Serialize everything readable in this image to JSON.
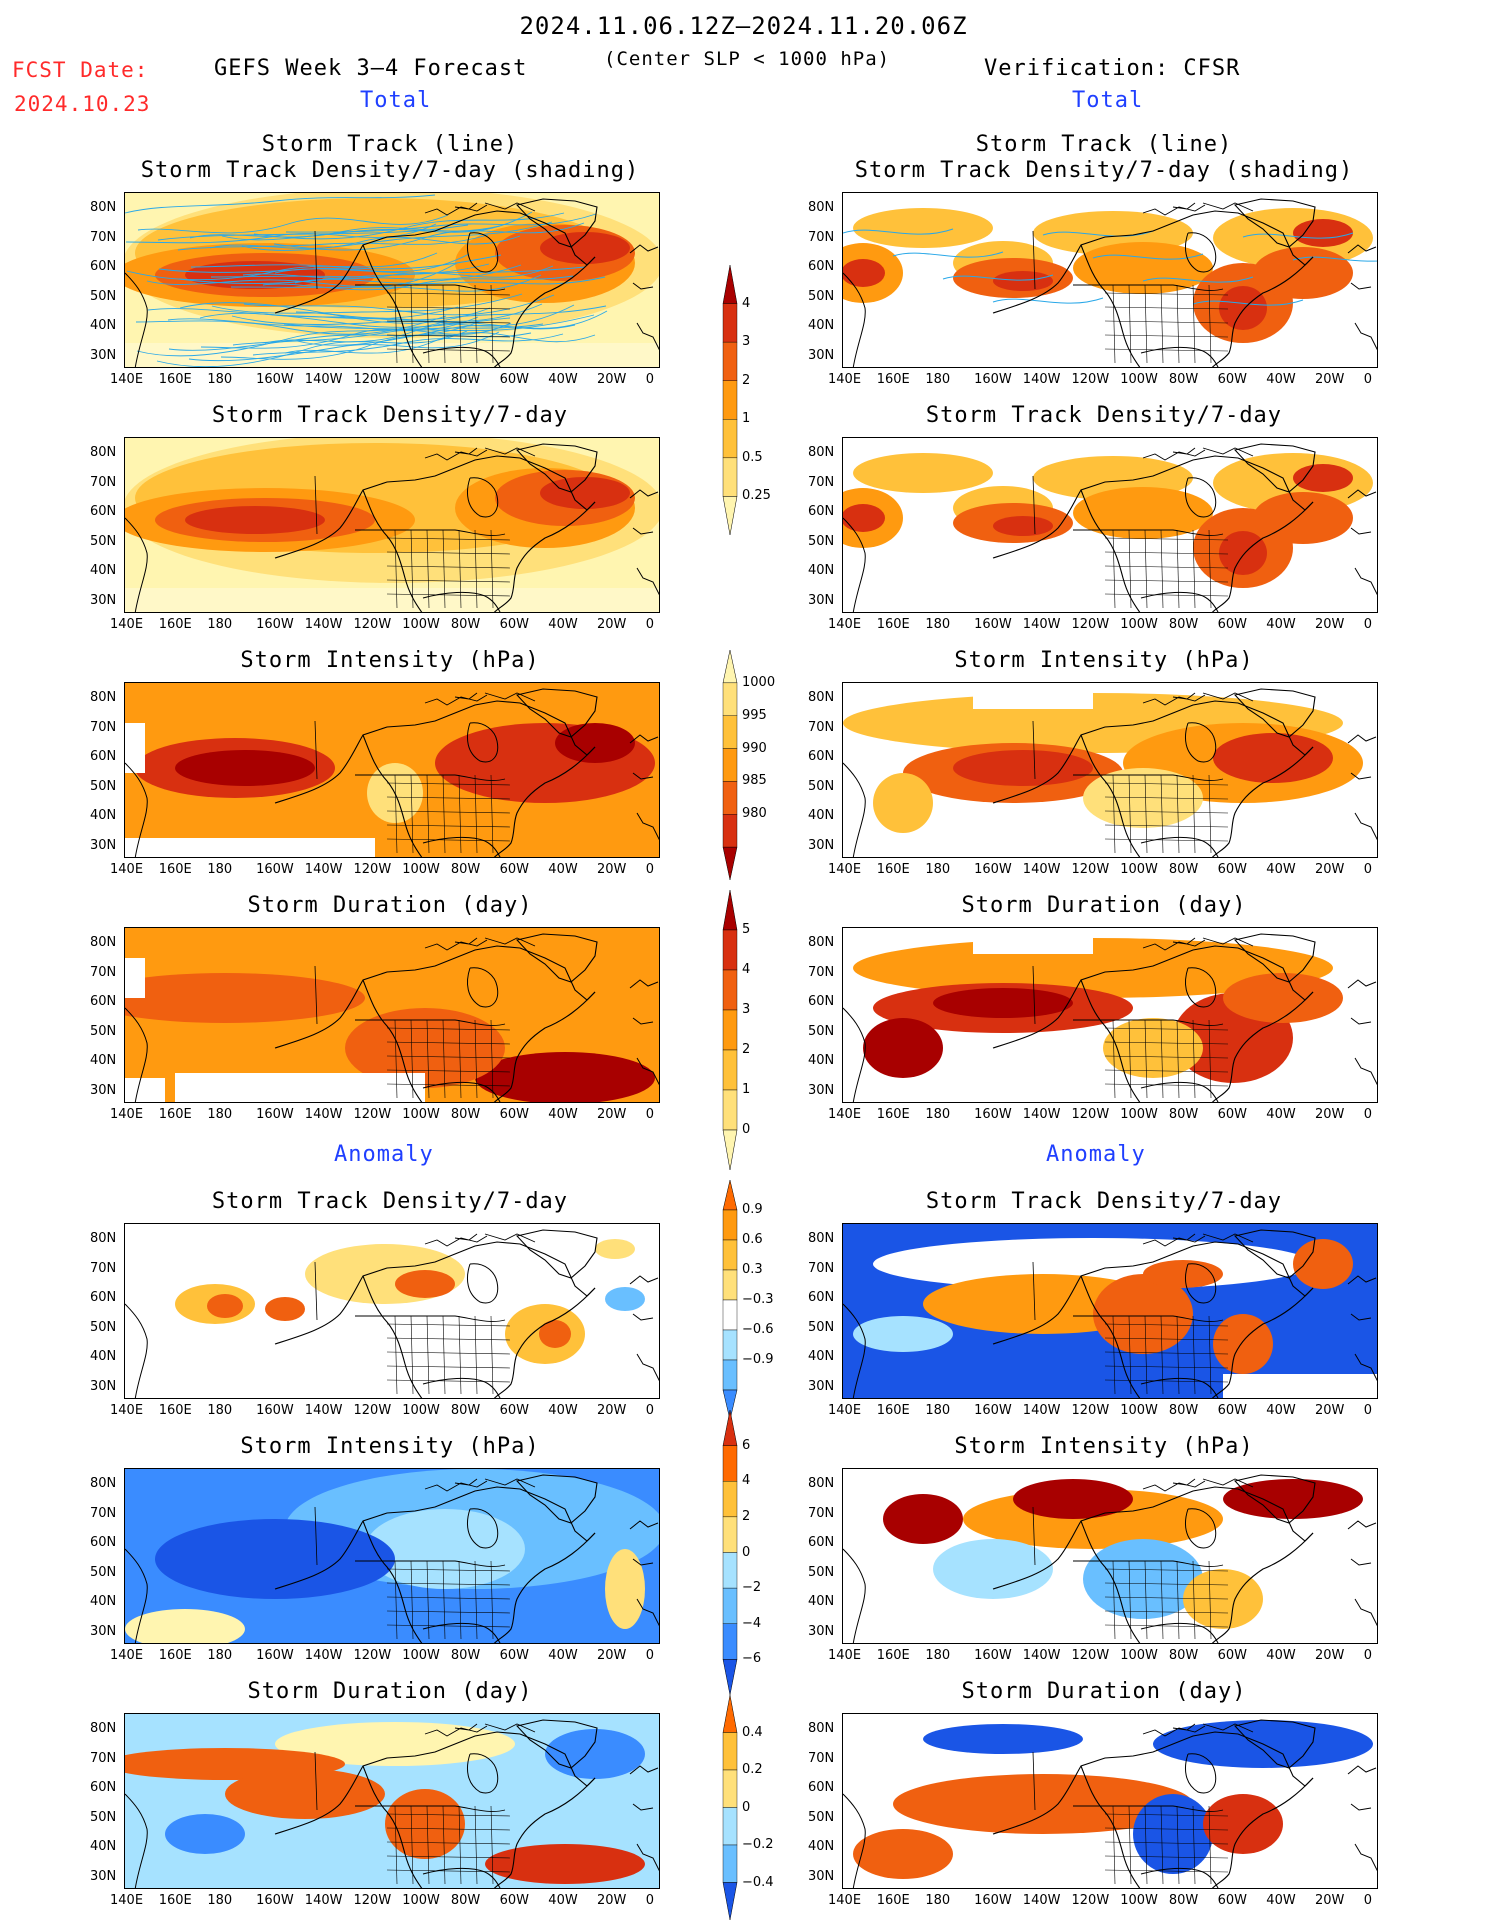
{
  "header": {
    "period": "2024.11.06.12Z–2024.11.20.06Z",
    "fcst_label": "FCST Date:",
    "fcst_date": "2024.10.23",
    "model_title": "GEFS Week 3–4 Forecast",
    "subtitle": "(Center SLP < 1000 hPa)",
    "verification": "Verification: CFSR"
  },
  "sections": {
    "total_left": "Total",
    "total_right": "Total",
    "anomaly_left": "Anomaly",
    "anomaly_right": "Anomaly"
  },
  "panels": {
    "track_line": "Storm Track (line)",
    "track_shading": "Storm Track Density/7-day (shading)",
    "track_density": "Storm Track Density/7-day",
    "intensity": "Storm Intensity (hPa)",
    "duration": "Storm Duration (day)"
  },
  "axes": {
    "lat_ticks": [
      "80N",
      "70N",
      "60N",
      "50N",
      "40N",
      "30N"
    ],
    "lon_ticks": [
      "140E",
      "160E",
      "180",
      "160W",
      "140W",
      "120W",
      "100W",
      "80W",
      "60W",
      "40W",
      "20W",
      "0"
    ]
  },
  "colorbars": {
    "density_total": [
      "4",
      "3",
      "2",
      "1",
      "0.5",
      "0.25"
    ],
    "intensity_total": [
      "1000",
      "995",
      "990",
      "985",
      "980"
    ],
    "duration_total": [
      "5",
      "4",
      "3",
      "2",
      "1",
      "0"
    ],
    "density_anom": [
      "0.9",
      "0.6",
      "0.3",
      "−0.3",
      "−0.6",
      "−0.9"
    ],
    "intensity_anom": [
      "6",
      "4",
      "2",
      "0",
      "−2",
      "−4",
      "−6"
    ],
    "duration_anom": [
      "0.4",
      "0.2",
      "0",
      "−0.2",
      "−0.4"
    ]
  },
  "colors": {
    "warm": [
      "#fff5b0",
      "#ffe07a",
      "#ffc13a",
      "#ff9a10",
      "#f06010",
      "#d83010",
      "#a80000"
    ],
    "cool": [
      "#d8f6ff",
      "#a6e2ff",
      "#69bfff",
      "#3a8cff",
      "#1a55e6"
    ],
    "track_line": "#2aa8e8",
    "title_red": "#ff2a2a",
    "title_blue": "#1f3fff"
  }
}
